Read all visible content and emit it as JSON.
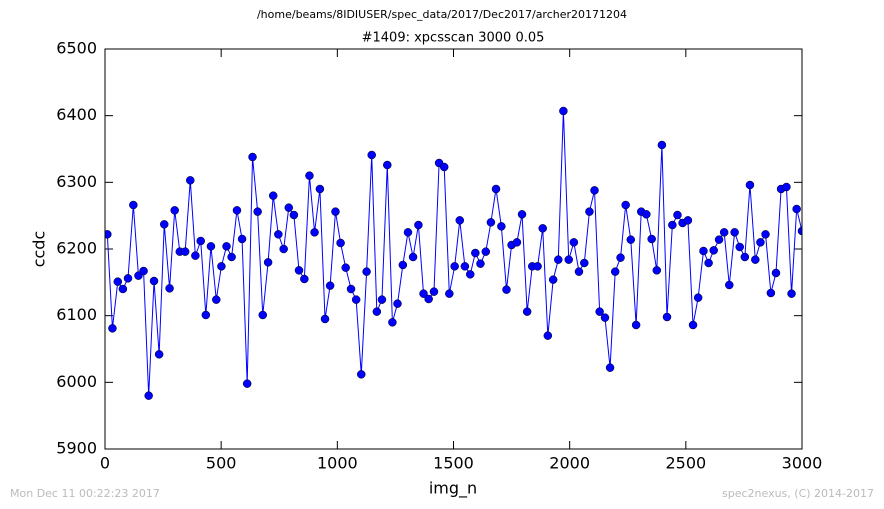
{
  "chart_data": {
    "type": "line",
    "suptitle": "/home/beams/8IDIUSER/spec_data/2017/Dec2017/archer20171204",
    "title": "#1409: xpcsscan 3000 0.05",
    "xlabel": "img_n",
    "ylabel": "ccdc",
    "xlim": [
      0,
      3000
    ],
    "ylim": [
      5900,
      6500
    ],
    "xticks": [
      0,
      500,
      1000,
      1500,
      2000,
      2500,
      3000
    ],
    "yticks": [
      5900,
      6000,
      6100,
      6200,
      6300,
      6400,
      6500
    ],
    "grid": false,
    "series": [
      {
        "color": "#0000ff",
        "x": [
          10,
          32,
          55,
          77,
          99,
          122,
          144,
          166,
          188,
          211,
          233,
          255,
          278,
          300,
          322,
          345,
          367,
          389,
          412,
          434,
          456,
          479,
          501,
          523,
          545,
          568,
          590,
          612,
          635,
          657,
          679,
          702,
          724,
          746,
          769,
          791,
          813,
          835,
          858,
          880,
          902,
          925,
          947,
          969,
          992,
          1014,
          1036,
          1059,
          1081,
          1103,
          1126,
          1148,
          1170,
          1192,
          1215,
          1237,
          1259,
          1282,
          1304,
          1326,
          1349,
          1371,
          1393,
          1416,
          1438,
          1460,
          1482,
          1505,
          1527,
          1549,
          1572,
          1594,
          1616,
          1639,
          1661,
          1683,
          1706,
          1728,
          1750,
          1773,
          1795,
          1817,
          1839,
          1862,
          1884,
          1906,
          1929,
          1951,
          1973,
          1996,
          2018,
          2040,
          2063,
          2085,
          2107,
          2129,
          2152,
          2174,
          2196,
          2219,
          2241,
          2263,
          2286,
          2308,
          2330,
          2353,
          2375,
          2397,
          2419,
          2442,
          2464,
          2486,
          2509,
          2531,
          2553,
          2576,
          2598,
          2620,
          2643,
          2665,
          2687,
          2710,
          2732,
          2754,
          2776,
          2799,
          2821,
          2843,
          2866,
          2888,
          2910,
          2933,
          2955,
          2977,
          3000
        ],
        "values": [
          6222,
          6081,
          6151,
          6140,
          6156,
          6266,
          6160,
          6167,
          5980,
          6152,
          6042,
          6237,
          6141,
          6258,
          6196,
          6196,
          6303,
          6190,
          6212,
          6101,
          6204,
          6124,
          6174,
          6204,
          6188,
          6258,
          6215,
          5998,
          6338,
          6256,
          6101,
          6180,
          6280,
          6222,
          6200,
          6262,
          6251,
          6168,
          6155,
          6310,
          6225,
          6290,
          6095,
          6145,
          6256,
          6209,
          6172,
          6140,
          6124,
          6012,
          6166,
          6341,
          6106,
          6124,
          6326,
          6090,
          6118,
          6176,
          6225,
          6188,
          6236,
          6133,
          6125,
          6136,
          6329,
          6323,
          6133,
          6174,
          6243,
          6174,
          6162,
          6194,
          6178,
          6196,
          6240,
          6290,
          6234,
          6139,
          6206,
          6210,
          6252,
          6106,
          6174,
          6174,
          6231,
          6070,
          6154,
          6184,
          6407,
          6184,
          6210,
          6166,
          6179,
          6256,
          6288,
          6106,
          6097,
          6022,
          6166,
          6187,
          6266,
          6214,
          6086,
          6256,
          6252,
          6215,
          6168,
          6356,
          6098,
          6236,
          6251,
          6239,
          6243,
          6086,
          6127,
          6197,
          6179,
          6198,
          6214,
          6225,
          6146,
          6225,
          6203,
          6188,
          6296,
          6184,
          6210,
          6222,
          6134,
          6164,
          6290,
          6293,
          6133,
          6260,
          6227
        ]
      }
    ]
  },
  "footer": {
    "timestamp": "Mon Dec 11 00:22:23 2017",
    "credit": "spec2nexus, (C) 2014-2017"
  }
}
